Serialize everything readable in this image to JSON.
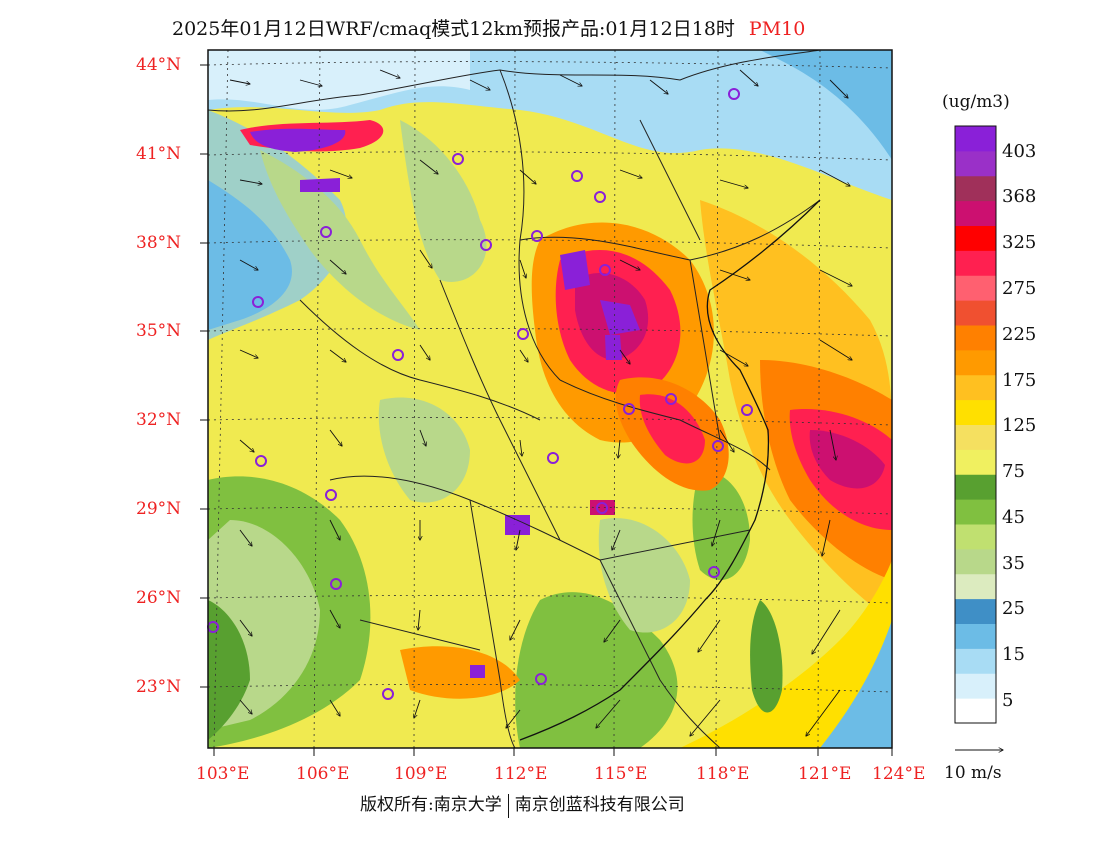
{
  "title": {
    "main": "2025年01月12日WRF/cmaq模式12km预报产品:01月12日18时",
    "species": "PM10"
  },
  "map": {
    "lat_labels": [
      "44°N",
      "41°N",
      "38°N",
      "35°N",
      "32°N",
      "29°N",
      "26°N",
      "23°N"
    ],
    "lon_labels": [
      "103°E",
      "106°E",
      "109°E",
      "112°E",
      "115°E",
      "118°E",
      "121°E",
      "124°E"
    ]
  },
  "colorbar": {
    "unit": "(ug/m3)",
    "labels": [
      "403",
      "368",
      "325",
      "275",
      "225",
      "175",
      "125",
      "75",
      "45",
      "35",
      "25",
      "15",
      "5"
    ],
    "colors": [
      "#ffffff",
      "#d8f0fb",
      "#a8dcf4",
      "#6cbce6",
      "#3f8fc6",
      "#dcebbf",
      "#b8d88a",
      "#c0e070",
      "#80c040",
      "#58a030",
      "#f0f060",
      "#f5e060",
      "#ffe000",
      "#ffc020",
      "#ff9a00",
      "#ff8000",
      "#f05030",
      "#ff6070",
      "#ff2050",
      "#ff0000",
      "#cc1070",
      "#a0305a",
      "#9a30c8",
      "#8a20d8"
    ]
  },
  "wind_reference": {
    "label": "10 m/s"
  },
  "footer": {
    "copyright": "版权所有:南京大学",
    "company": "南京创蓝科技有限公司"
  }
}
